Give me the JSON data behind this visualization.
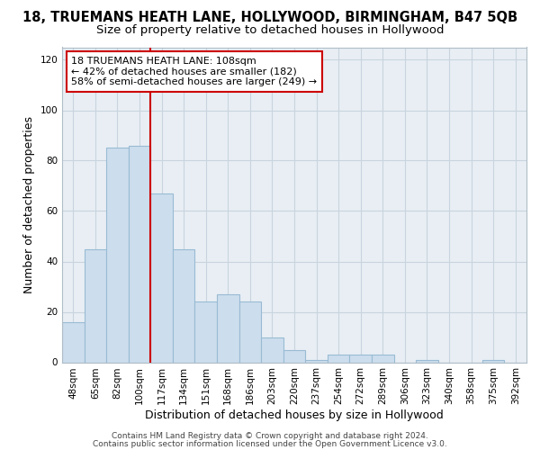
{
  "title_line1": "18, TRUEMANS HEATH LANE, HOLLYWOOD, BIRMINGHAM, B47 5QB",
  "title_line2": "Size of property relative to detached houses in Hollywood",
  "xlabel": "Distribution of detached houses by size in Hollywood",
  "ylabel": "Number of detached properties",
  "categories": [
    "48sqm",
    "65sqm",
    "82sqm",
    "100sqm",
    "117sqm",
    "134sqm",
    "151sqm",
    "168sqm",
    "186sqm",
    "203sqm",
    "220sqm",
    "237sqm",
    "254sqm",
    "272sqm",
    "289sqm",
    "306sqm",
    "323sqm",
    "340sqm",
    "358sqm",
    "375sqm",
    "392sqm"
  ],
  "values": [
    16,
    45,
    85,
    86,
    67,
    45,
    24,
    27,
    24,
    10,
    5,
    1,
    3,
    3,
    3,
    0,
    1,
    0,
    0,
    1,
    0
  ],
  "bar_color": "#ccdded",
  "bar_edge_color": "#99bbd4",
  "vline_x": 3.5,
  "vline_color": "#cc0000",
  "annotation_text": "18 TRUEMANS HEATH LANE: 108sqm\n← 42% of detached houses are smaller (182)\n58% of semi-detached houses are larger (249) →",
  "annotation_box_color": "#ffffff",
  "annotation_box_edge": "#cc0000",
  "ylim": [
    0,
    125
  ],
  "yticks": [
    0,
    20,
    40,
    60,
    80,
    100,
    120
  ],
  "grid_color": "#c8d4de",
  "bg_color": "#e8eef4",
  "footer1": "Contains HM Land Registry data © Crown copyright and database right 2024.",
  "footer2": "Contains public sector information licensed under the Open Government Licence v3.0.",
  "title_fontsize": 10.5,
  "subtitle_fontsize": 9.5,
  "axis_label_fontsize": 9,
  "tick_fontsize": 7.5,
  "annotation_fontsize": 8,
  "footer_fontsize": 6.5
}
